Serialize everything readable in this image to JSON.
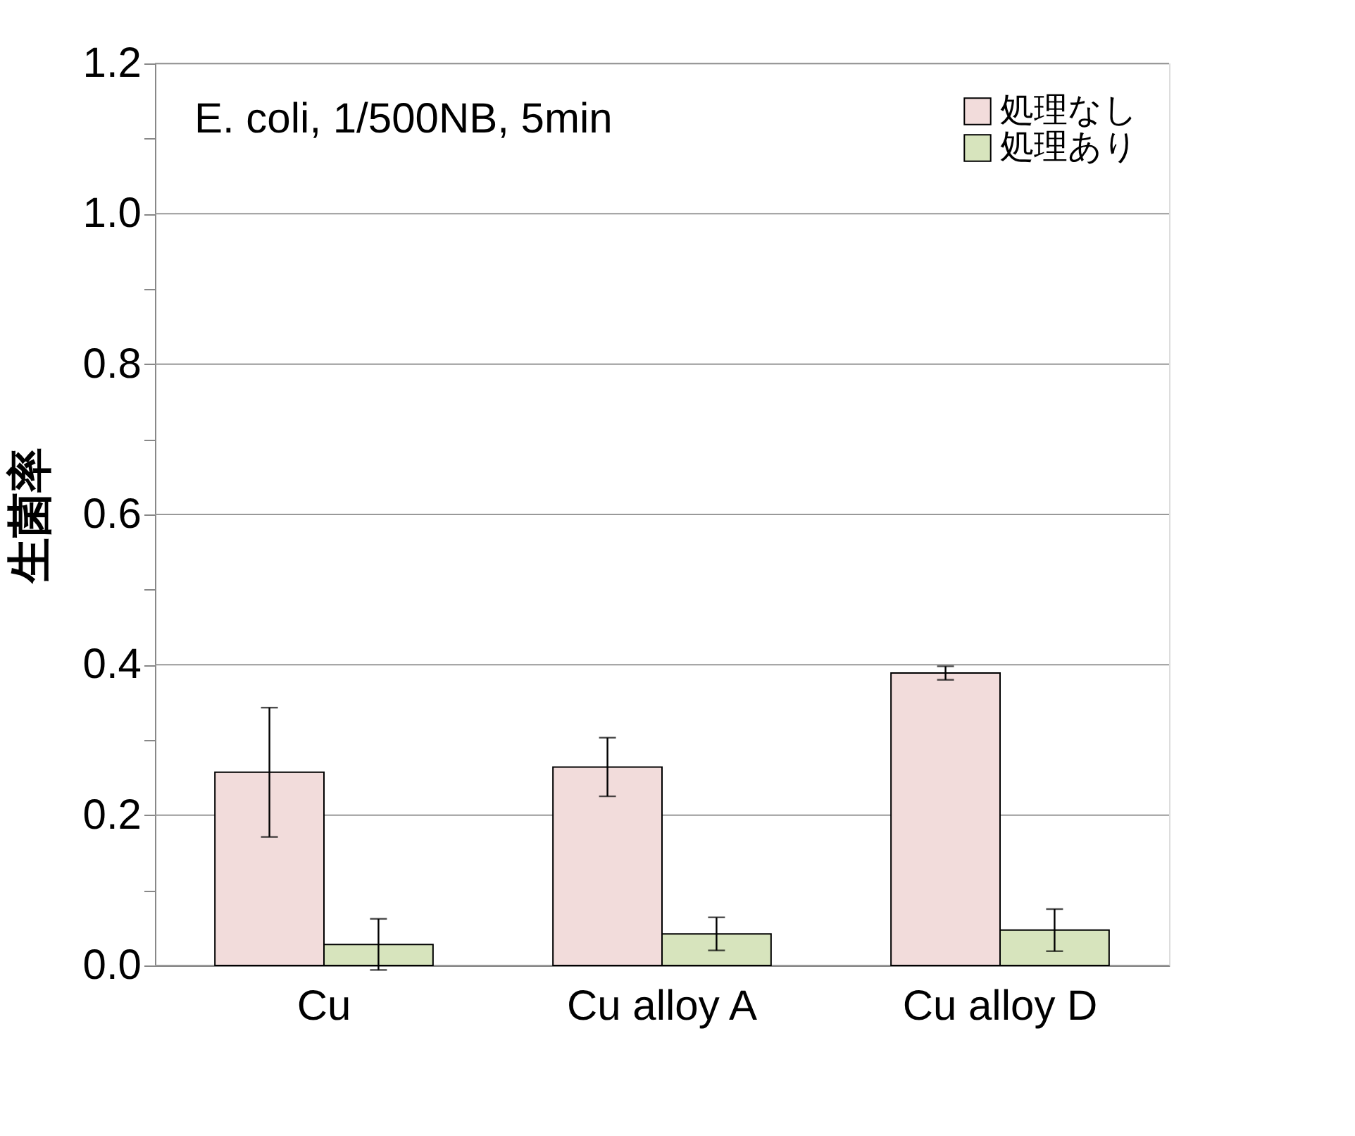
{
  "chart_data": {
    "type": "bar",
    "ylabel": "生菌率",
    "categories": [
      "Cu",
      "Cu alloy A",
      "Cu alloy D"
    ],
    "series": [
      {
        "name": "処理なし",
        "color": "#f2dcdb",
        "values": [
          0.257,
          0.264,
          0.389
        ],
        "errors": [
          0.086,
          0.039,
          0.009
        ]
      },
      {
        "name": "処理あり",
        "color": "#d7e4bd",
        "values": [
          0.028,
          0.042,
          0.047
        ],
        "errors": [
          0.034,
          0.022,
          0.028
        ]
      }
    ],
    "ylim": [
      0,
      1.2
    ],
    "yticks": [
      {
        "value": 0,
        "label": "0.0"
      },
      {
        "value": 0.1,
        "label": null
      },
      0.2,
      {
        "value": 0.3,
        "label": null
      },
      0.4,
      {
        "value": 0.5,
        "label": null
      },
      0.6,
      {
        "value": 0.7,
        "label": null
      },
      0.8,
      {
        "value": 0.9,
        "label": null
      },
      {
        "value": 1,
        "label": "1.0"
      },
      {
        "value": 1.1,
        "label": null
      },
      1.2
    ],
    "grid": "y",
    "legend": "top right",
    "annotations": [
      "E. coli, 1/500NB, 5min"
    ]
  }
}
